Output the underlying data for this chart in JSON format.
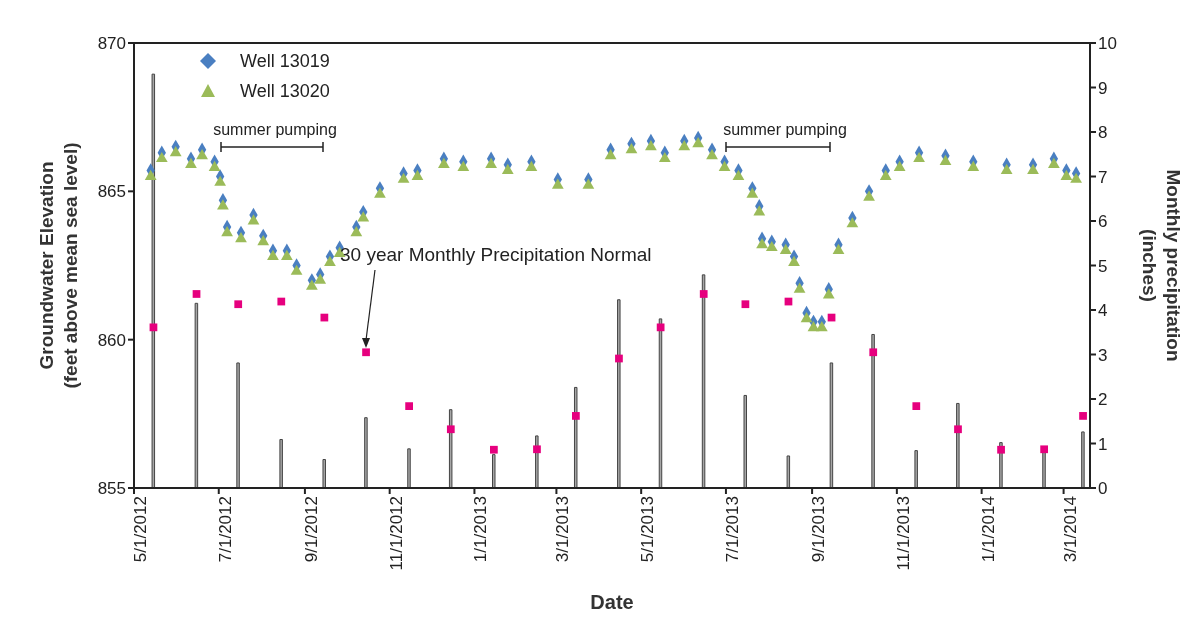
{
  "chart_data": {
    "type": "scatter",
    "xlabel": "Date",
    "ylabel": "Groundwater Elevation (feet above mean sea level)",
    "y2label": "Monthly precipitation (inches)",
    "xlim": [
      "2012-05-01",
      "2014-03-20"
    ],
    "xticks": [
      {
        "value": "2012-05-01",
        "label": "5/1/2012"
      },
      {
        "value": "2012-07-01",
        "label": "7/1/2012"
      },
      {
        "value": "2012-09-01",
        "label": "9/1/2012"
      },
      {
        "value": "2012-11-01",
        "label": "11/1/2012"
      },
      {
        "value": "2013-01-01",
        "label": "1/1/2013"
      },
      {
        "value": "2013-03-01",
        "label": "3/1/2013"
      },
      {
        "value": "2013-05-01",
        "label": "5/1/2013"
      },
      {
        "value": "2013-07-01",
        "label": "7/1/2013"
      },
      {
        "value": "2013-09-01",
        "label": "9/1/2013"
      },
      {
        "value": "2013-11-01",
        "label": "11/1/2013"
      },
      {
        "value": "2014-01-01",
        "label": "1/1/2014"
      },
      {
        "value": "2014-03-01",
        "label": "3/1/2014"
      }
    ],
    "ylim": [
      855,
      870
    ],
    "yticks": [
      855,
      860,
      865,
      870
    ],
    "y2lim": [
      0,
      10
    ],
    "y2ticks": [
      0,
      1,
      2,
      3,
      4,
      5,
      6,
      7,
      8,
      9,
      10
    ],
    "legend": "top left",
    "grid": false,
    "x": [
      "2012-05-13",
      "2012-05-21",
      "2012-05-31",
      "2012-06-11",
      "2012-06-19",
      "2012-06-28",
      "2012-07-02",
      "2012-07-04",
      "2012-07-07",
      "2012-07-17",
      "2012-07-26",
      "2012-08-02",
      "2012-08-09",
      "2012-08-19",
      "2012-08-26",
      "2012-09-06",
      "2012-09-12",
      "2012-09-19",
      "2012-09-26",
      "2012-10-08",
      "2012-10-13",
      "2012-10-25",
      "2012-11-11",
      "2012-11-21",
      "2012-12-10",
      "2012-12-24",
      "2013-01-13",
      "2013-01-25",
      "2013-02-11",
      "2013-03-02",
      "2013-03-24",
      "2013-04-09",
      "2013-04-24",
      "2013-05-08",
      "2013-05-18",
      "2013-06-01",
      "2013-06-11",
      "2013-06-21",
      "2013-06-30",
      "2013-07-10",
      "2013-07-20",
      "2013-07-25",
      "2013-07-27",
      "2013-08-03",
      "2013-08-13",
      "2013-08-19",
      "2013-08-23",
      "2013-08-28",
      "2013-09-02",
      "2013-09-08",
      "2013-09-13",
      "2013-09-20",
      "2013-09-30",
      "2013-10-12",
      "2013-10-24",
      "2013-11-03",
      "2013-11-17",
      "2013-12-06",
      "2013-12-26",
      "2014-01-19",
      "2014-02-07",
      "2014-02-22",
      "2014-03-03",
      "2014-03-10"
    ],
    "series": [
      {
        "type": "bar",
        "axis": "y2",
        "color": "#a6a6a6",
        "x": [
          "2012-05-15",
          "2012-06-15",
          "2012-07-15",
          "2012-08-15",
          "2012-09-15",
          "2012-10-15",
          "2012-11-15",
          "2012-12-15",
          "2013-01-15",
          "2013-02-15",
          "2013-03-15",
          "2013-04-15",
          "2013-05-15",
          "2013-06-15",
          "2013-07-15",
          "2013-08-15",
          "2013-09-15",
          "2013-10-15",
          "2013-11-15",
          "2013-12-15",
          "2014-01-15",
          "2014-02-15",
          "2014-03-15"
        ],
        "values": [
          9.3,
          4.15,
          2.81,
          1.09,
          0.64,
          1.58,
          0.88,
          1.76,
          0.75,
          1.17,
          2.26,
          4.23,
          3.8,
          4.79,
          2.08,
          0.72,
          2.81,
          3.45,
          0.84,
          1.9,
          1.02,
          0.84,
          1.26
        ]
      },
      {
        "axis": "y2",
        "marker": "square",
        "color": "#e6007e",
        "x": [
          "2012-05-15",
          "2012-06-15",
          "2012-07-15",
          "2012-08-15",
          "2012-09-15",
          "2012-10-15",
          "2012-11-15",
          "2012-12-15",
          "2013-01-15",
          "2013-02-15",
          "2013-03-15",
          "2013-04-15",
          "2013-05-15",
          "2013-06-15",
          "2013-07-15",
          "2013-08-15",
          "2013-09-15",
          "2013-10-15",
          "2013-11-15",
          "2013-12-15",
          "2014-01-15",
          "2014-02-15",
          "2014-03-15"
        ],
        "values": [
          3.61,
          4.36,
          4.13,
          4.19,
          3.83,
          3.05,
          1.84,
          1.32,
          0.86,
          0.87,
          1.62,
          2.91,
          3.61,
          4.36,
          4.13,
          4.19,
          3.83,
          3.05,
          1.84,
          1.32,
          0.86,
          0.87,
          1.62
        ]
      },
      {
        "name": "Well 13019",
        "marker": "diamond",
        "color": "#4a7fc1",
        "values": [
          865.7,
          866.3,
          866.5,
          866.1,
          866.4,
          866.0,
          865.5,
          864.7,
          863.8,
          863.6,
          864.2,
          863.5,
          863.0,
          863.0,
          862.5,
          862.0,
          862.2,
          862.8,
          863.1,
          863.8,
          864.3,
          865.1,
          865.6,
          865.7,
          866.1,
          866.0,
          866.1,
          865.9,
          866.0,
          865.4,
          865.4,
          866.4,
          866.6,
          866.7,
          866.3,
          866.7,
          866.8,
          866.4,
          866.0,
          865.7,
          865.1,
          864.5,
          863.4,
          863.3,
          863.2,
          862.8,
          861.9,
          860.9,
          860.6,
          860.6,
          861.7,
          863.2,
          864.1,
          865.0,
          865.7,
          866.0,
          866.3,
          866.2,
          866.0,
          865.9,
          865.9,
          866.1,
          865.7,
          865.6
        ]
      },
      {
        "name": "Well 13020",
        "marker": "triangle",
        "color": "#9bbb59",
        "values": [
          865.5,
          866.1,
          866.3,
          865.9,
          866.2,
          865.8,
          865.3,
          864.5,
          863.6,
          863.4,
          864.0,
          863.3,
          862.8,
          862.8,
          862.3,
          861.8,
          862.0,
          862.6,
          862.9,
          863.6,
          864.1,
          864.9,
          865.4,
          865.5,
          865.9,
          865.8,
          865.9,
          865.7,
          865.8,
          865.2,
          865.2,
          866.2,
          866.4,
          866.5,
          866.1,
          866.5,
          866.6,
          866.2,
          865.8,
          865.5,
          864.9,
          864.3,
          863.2,
          863.1,
          863.0,
          862.6,
          861.7,
          860.7,
          860.4,
          860.4,
          861.5,
          863.0,
          863.9,
          864.8,
          865.5,
          865.8,
          866.1,
          866.0,
          865.8,
          865.7,
          865.7,
          865.9,
          865.5,
          865.4
        ]
      }
    ],
    "annotations": [
      "summer pumping",
      "summer pumping",
      "30 year Monthly Precipitation Normal"
    ]
  }
}
